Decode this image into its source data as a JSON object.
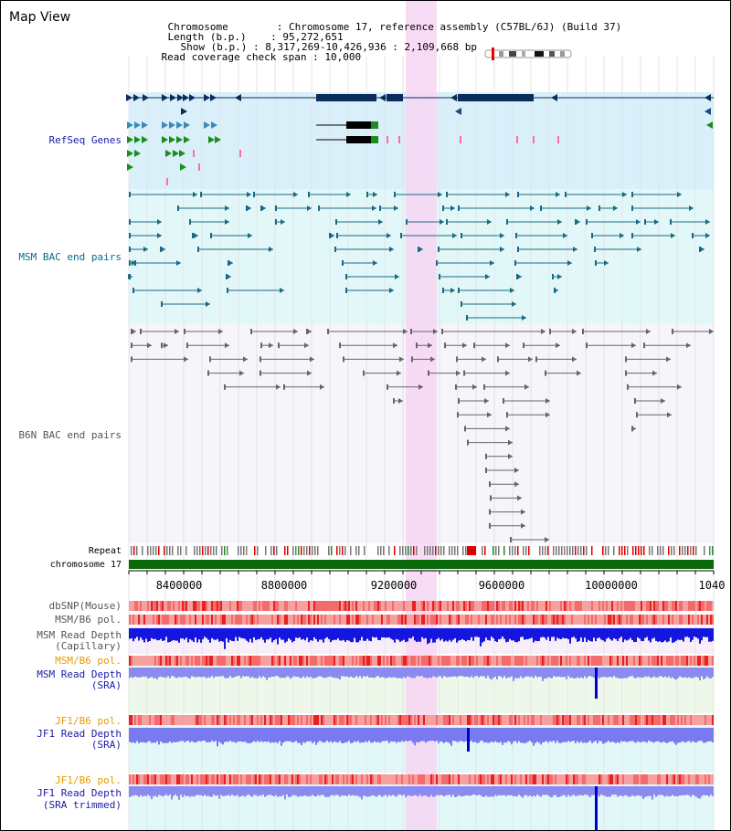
{
  "title": "Map View",
  "info": {
    "chromosome_key": "Chromosome",
    "chromosome_val": "Chromosome 17, reference assembly (C57BL/6J) (Build 37)",
    "length_key": "Length (b.p.)",
    "length_val": "95,272,651",
    "show_key": "Show (b.p.)",
    "show_val": "8,317,269-10,426,936 : 2,109,668 bp",
    "span_key": "Read coverage check span",
    "span_val": "10,000"
  },
  "tracks": {
    "refseq": "RefSeq Genes",
    "msm_bac": "MSM BAC end pairs",
    "b6n_bac": "B6N BAC end pairs",
    "repeat": "Repeat",
    "chromosome": "chromosome 17",
    "dbsnp": "dbSNP(Mouse)",
    "msm_b6_pol_1": "MSM/B6 pol.",
    "msm_depth_cap_1": "MSM Read Depth",
    "msm_depth_cap_2": "(Capillary)",
    "msm_b6_pol_2": "MSM/B6 pol.",
    "msm_depth_sra_1": "MSM Read Depth",
    "msm_depth_sra_2": "(SRA)",
    "jf1_b6_pol_1": "JF1/B6 pol.",
    "jf1_depth_sra_1": "JF1 Read Depth",
    "jf1_depth_sra_2": "(SRA)",
    "jf1_b6_pol_2": "JF1/B6 pol.",
    "jf1_depth_trim_1": "JF1 Read Depth",
    "jf1_depth_trim_2": "(SRA trimmed)"
  },
  "axis": {
    "ticks": [
      "8400000",
      "8800000",
      "9200000",
      "9600000",
      "10000000",
      "1040"
    ]
  },
  "colors": {
    "refseq_bg": "#d9effa",
    "msm_bg": "#e2f7f7",
    "b6n_bg": "#f5f5fa",
    "highlight": "#f7d6f3",
    "refseq_label": "#1a1aa6",
    "msm_label": "#006f8a",
    "b6n_label": "#555555",
    "orange_label": "#e89a00",
    "depth_label": "#1a1aa6"
  }
}
